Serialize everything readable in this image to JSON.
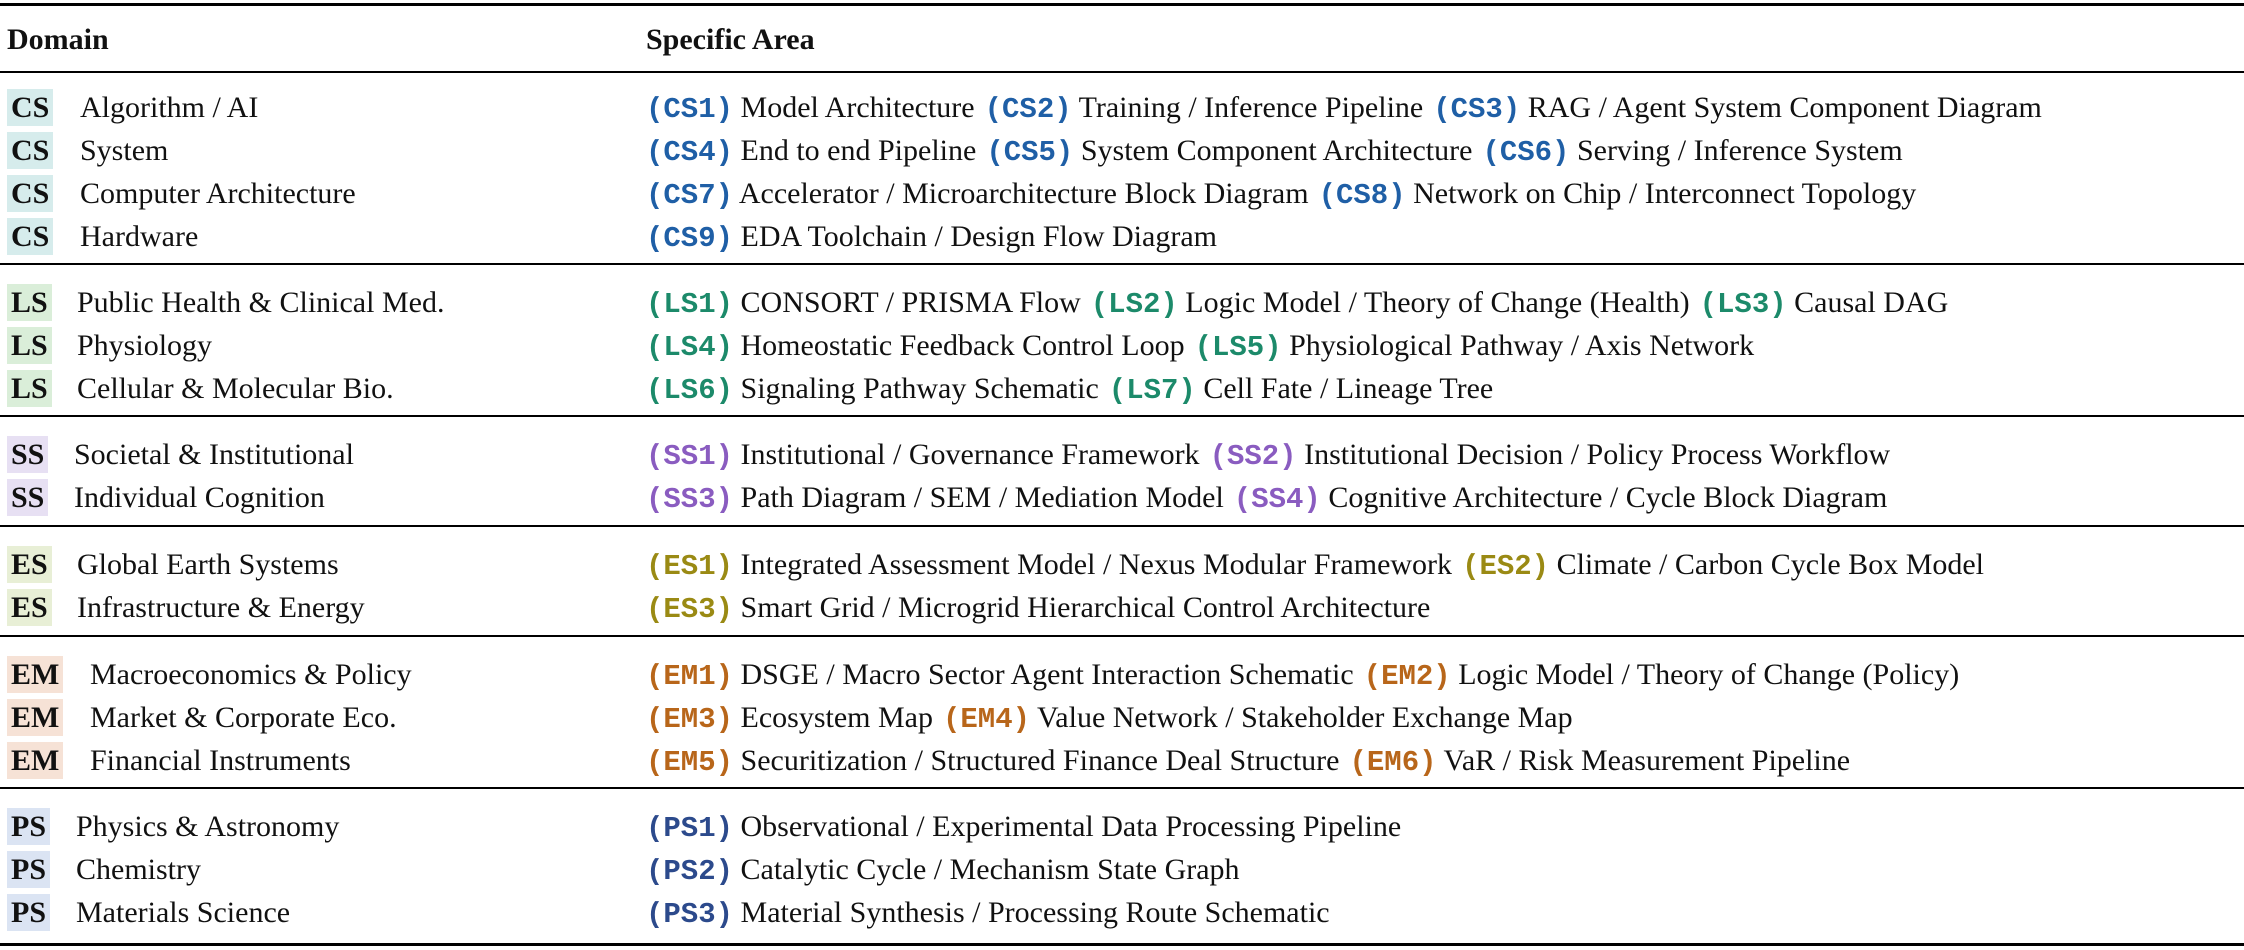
{
  "header": {
    "domain": "Domain",
    "area": "Specific Area"
  },
  "groups": [
    {
      "abbr": "CS",
      "badge_bg": "#d6ecec",
      "code_color": "#1f5fa6",
      "rows": [
        {
          "name": "Algorithm / AI",
          "areas": [
            {
              "code": "(CS1)",
              "text": "Model Architecture"
            },
            {
              "code": "(CS2)",
              "text": "Training / Inference Pipeline"
            },
            {
              "code": "(CS3)",
              "text": "RAG / Agent System Component Diagram"
            }
          ]
        },
        {
          "name": "System",
          "areas": [
            {
              "code": "(CS4)",
              "text": "End to end Pipeline"
            },
            {
              "code": "(CS5)",
              "text": "System Component Architecture"
            },
            {
              "code": "(CS6)",
              "text": "Serving / Inference System"
            }
          ]
        },
        {
          "name": "Computer Architecture",
          "areas": [
            {
              "code": "(CS7)",
              "text": "Accelerator / Microarchitecture Block Diagram"
            },
            {
              "code": "(CS8)",
              "text": "Network on Chip / Interconnect Topology"
            }
          ]
        },
        {
          "name": "Hardware",
          "areas": [
            {
              "code": "(CS9)",
              "text": "EDA Toolchain / Design Flow Diagram"
            }
          ]
        }
      ]
    },
    {
      "abbr": "LS",
      "badge_bg": "#daeed9",
      "code_color": "#1c8a6a",
      "rows": [
        {
          "name": "Public Health & Clinical Med.",
          "areas": [
            {
              "code": "(LS1)",
              "text": "CONSORT / PRISMA Flow"
            },
            {
              "code": "(LS2)",
              "text": "Logic Model / Theory of Change (Health)"
            },
            {
              "code": "(LS3)",
              "text": "Causal DAG"
            }
          ]
        },
        {
          "name": "Physiology",
          "areas": [
            {
              "code": "(LS4)",
              "text": "Homeostatic Feedback Control Loop"
            },
            {
              "code": "(LS5)",
              "text": "Physiological Pathway / Axis Network"
            }
          ]
        },
        {
          "name": "Cellular & Molecular Bio.",
          "areas": [
            {
              "code": "(LS6)",
              "text": "Signaling Pathway Schematic"
            },
            {
              "code": "(LS7)",
              "text": "Cell Fate / Lineage Tree"
            }
          ]
        }
      ]
    },
    {
      "abbr": "SS",
      "badge_bg": "#e7e0f3",
      "code_color": "#8a5cc0",
      "rows": [
        {
          "name": "Societal & Institutional",
          "areas": [
            {
              "code": "(SS1)",
              "text": "Institutional / Governance Framework"
            },
            {
              "code": "(SS2)",
              "text": "Institutional Decision / Policy Process Workflow"
            }
          ]
        },
        {
          "name": "Individual Cognition",
          "areas": [
            {
              "code": "(SS3)",
              "text": "Path Diagram / SEM / Mediation Model"
            },
            {
              "code": "(SS4)",
              "text": "Cognitive Architecture / Cycle Block Diagram"
            }
          ]
        }
      ]
    },
    {
      "abbr": "ES",
      "badge_bg": "#e8efd6",
      "code_color": "#9a8a14",
      "rows": [
        {
          "name": "Global Earth Systems",
          "areas": [
            {
              "code": "(ES1)",
              "text": "Integrated Assessment Model / Nexus Modular Framework"
            },
            {
              "code": "(ES2)",
              "text": "Climate / Carbon Cycle Box Model"
            }
          ]
        },
        {
          "name": "Infrastructure & Energy",
          "areas": [
            {
              "code": "(ES3)",
              "text": "Smart Grid / Microgrid Hierarchical Control Architecture"
            }
          ]
        }
      ]
    },
    {
      "abbr": "EM",
      "badge_bg": "#f6e2d6",
      "code_color": "#b8661a",
      "rows": [
        {
          "name": "Macroeconomics & Policy",
          "areas": [
            {
              "code": "(EM1)",
              "text": "DSGE / Macro Sector Agent Interaction Schematic"
            },
            {
              "code": "(EM2)",
              "text": "Logic Model / Theory of Change (Policy)"
            }
          ]
        },
        {
          "name": "Market & Corporate Eco.",
          "areas": [
            {
              "code": "(EM3)",
              "text": "Ecosystem Map"
            },
            {
              "code": "(EM4)",
              "text": "Value Network / Stakeholder Exchange Map"
            }
          ]
        },
        {
          "name": "Financial Instruments",
          "areas": [
            {
              "code": "(EM5)",
              "text": "Securitization / Structured Finance Deal Structure"
            },
            {
              "code": "(EM6)",
              "text": "VaR / Risk Measurement Pipeline"
            }
          ]
        }
      ]
    },
    {
      "abbr": "PS",
      "badge_bg": "#dbe4f3",
      "code_color": "#2c4a8c",
      "rows": [
        {
          "name": "Physics & Astronomy",
          "areas": [
            {
              "code": "(PS1)",
              "text": "Observational / Experimental Data Processing Pipeline"
            }
          ]
        },
        {
          "name": "Chemistry",
          "areas": [
            {
              "code": "(PS2)",
              "text": "Catalytic Cycle / Mechanism State Graph"
            }
          ]
        },
        {
          "name": "Materials Science",
          "areas": [
            {
              "code": "(PS3)",
              "text": "Material Synthesis / Processing Route Schematic"
            }
          ]
        }
      ]
    }
  ]
}
